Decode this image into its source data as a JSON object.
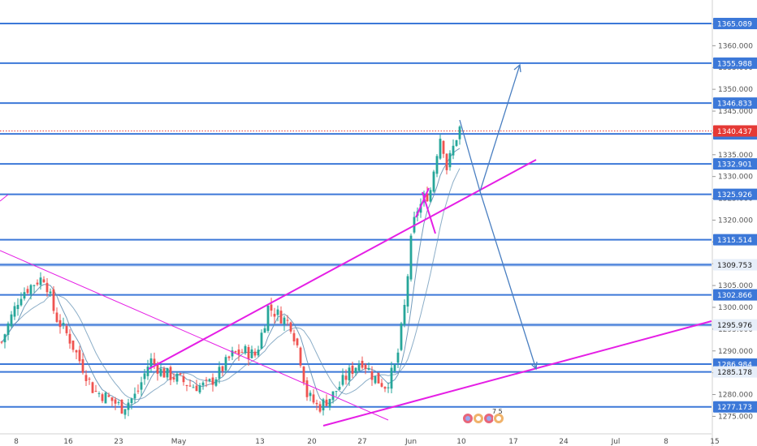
{
  "chart_data": {
    "type": "candlestick",
    "y_axis": {
      "range": [
        1275,
        1372
      ],
      "position": "right",
      "step": 5
    },
    "x_axis": {
      "labels": [
        "8",
        "16",
        "23",
        "May",
        "13",
        "20",
        "27",
        "Jun",
        "10",
        "17",
        "24",
        "Jul",
        "8",
        "15"
      ]
    },
    "price_levels": [
      1365.089,
      1355.988,
      1346.833,
      1339.776,
      1332.901,
      1325.926,
      1315.514,
      1309.753,
      1302.866,
      1295.976,
      1286.984,
      1285.178,
      1277.173
    ],
    "current_price": 1340.437,
    "colors": {
      "up": "#26a69a",
      "down": "#ef5350",
      "level": "#3c78d8",
      "trend": "#e51ee5",
      "current": "#e53935",
      "ma": "#5b8bb0"
    },
    "events_label": "7 5"
  }
}
